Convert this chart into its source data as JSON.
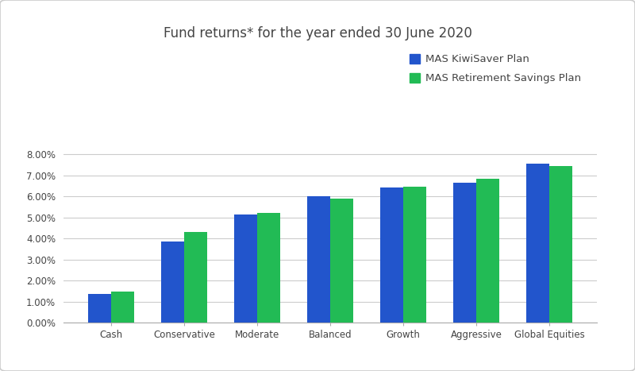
{
  "title": "Fund returns* for the year ended 30 June 2020",
  "categories": [
    "Cash",
    "Conservative",
    "Moderate",
    "Balanced",
    "Growth",
    "Aggressive",
    "Global Equities"
  ],
  "series": [
    {
      "name": "MAS KiwiSaver Plan",
      "color": "#2255CC",
      "values": [
        0.0135,
        0.0385,
        0.0515,
        0.06,
        0.0643,
        0.0665,
        0.0755
      ]
    },
    {
      "name": "MAS Retirement Savings Plan",
      "color": "#22BB55",
      "values": [
        0.0148,
        0.043,
        0.052,
        0.059,
        0.0645,
        0.0685,
        0.0742
      ]
    }
  ],
  "ylim": [
    0.0,
    0.088
  ],
  "yticks": [
    0.0,
    0.01,
    0.02,
    0.03,
    0.04,
    0.05,
    0.06,
    0.07,
    0.08
  ],
  "background_color": "#ffffff",
  "grid_color": "#cccccc",
  "bar_width": 0.32,
  "title_fontsize": 12,
  "tick_fontsize": 8.5,
  "legend_fontsize": 9.5,
  "border_color": "#cccccc",
  "text_color": "#444444"
}
